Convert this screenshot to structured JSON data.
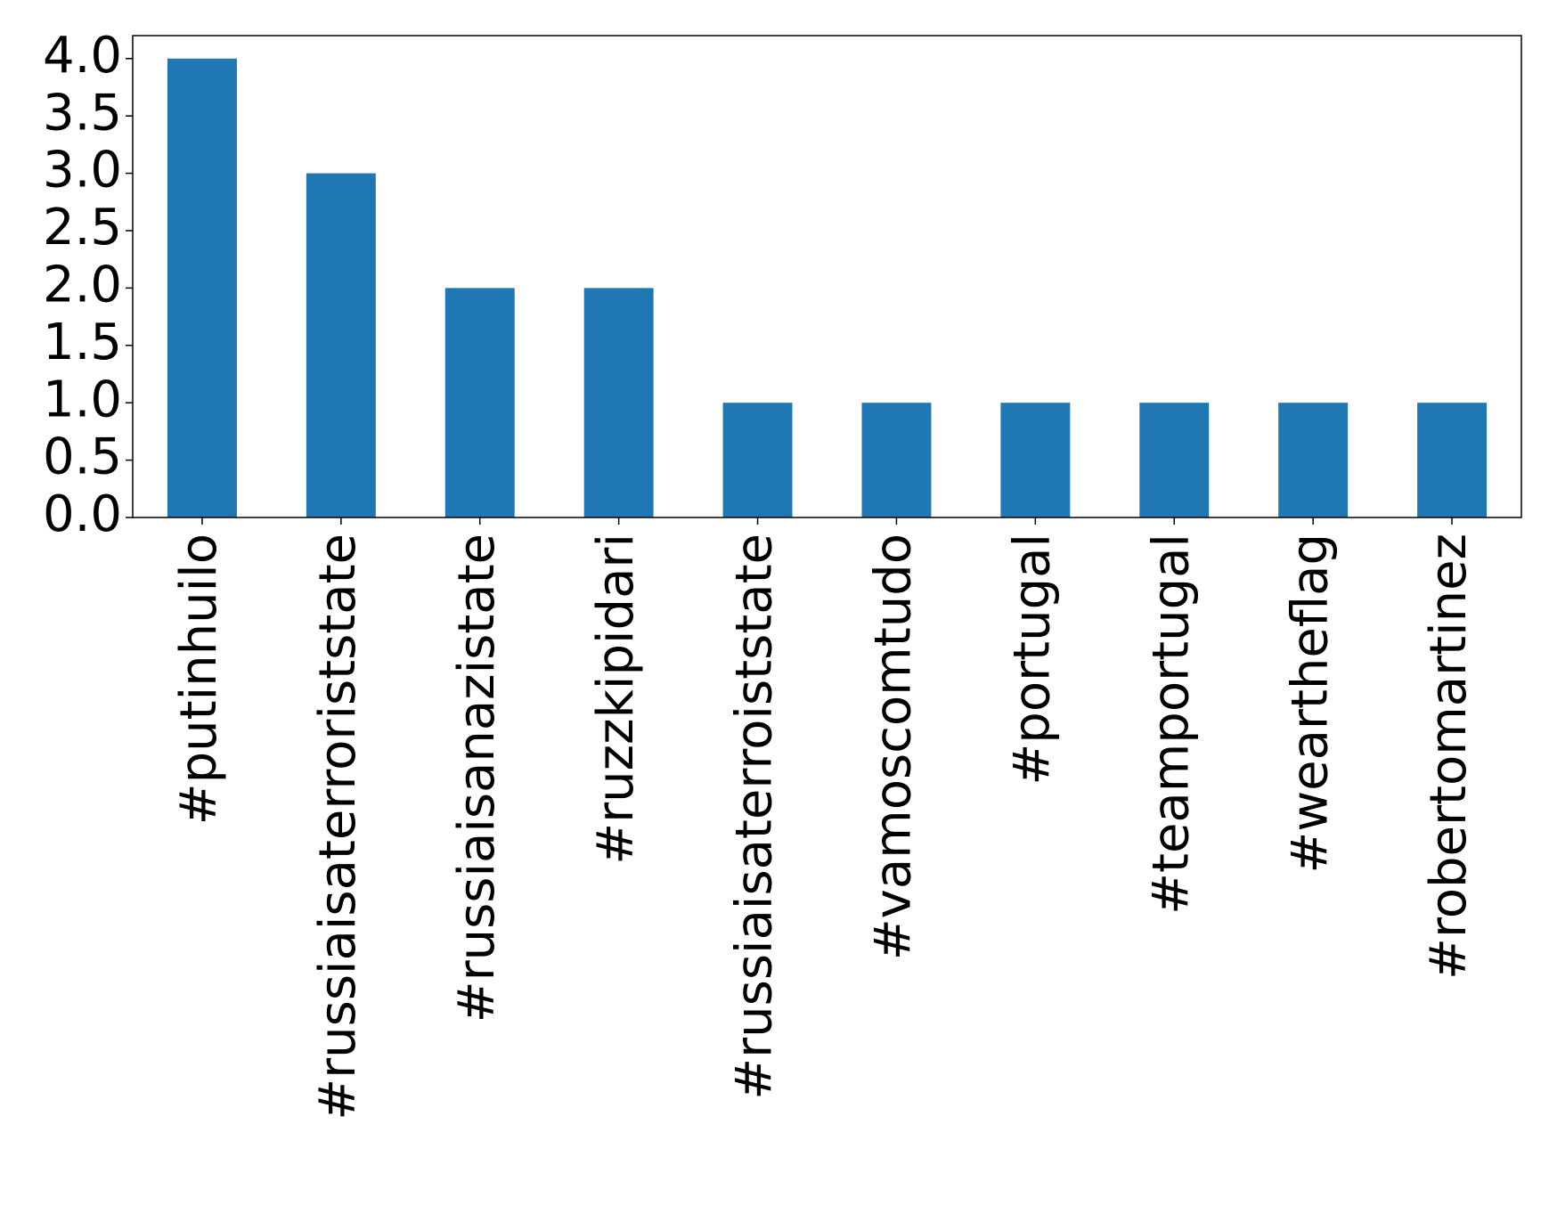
{
  "chart_data": {
    "type": "bar",
    "categories": [
      "#putinhuilo",
      "#russiaisaterroriststate",
      "#russiaisanazistate",
      "#ruzzkipidari",
      "#russiaisaterroiststate",
      "#vamoscomtudo",
      "#portugal",
      "#teamportugal",
      "#weartheflag",
      "#robertomartinez"
    ],
    "values": [
      4,
      3,
      2,
      2,
      1,
      1,
      1,
      1,
      1,
      1
    ],
    "color": "#1f77b4",
    "ylim": [
      0,
      4.2
    ],
    "yticks": [
      {
        "value": 0,
        "label": "0.0"
      },
      0.5,
      {
        "value": 1,
        "label": "1.0"
      },
      1.5,
      {
        "value": 2,
        "label": "2.0"
      },
      2.5,
      {
        "value": 3,
        "label": "3.0"
      },
      3.5,
      {
        "value": 4,
        "label": "4.0"
      }
    ],
    "grid": false
  }
}
